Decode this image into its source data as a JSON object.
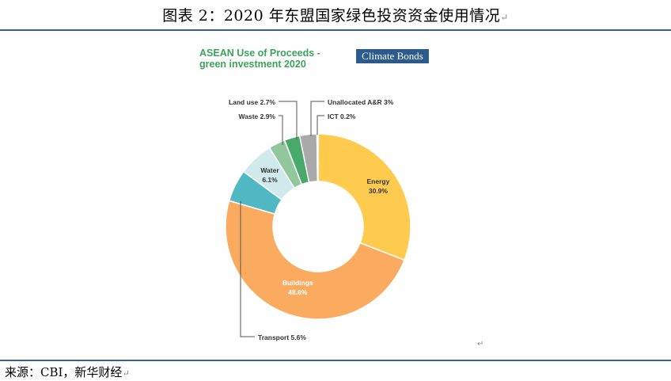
{
  "figure": {
    "title": "图表 2：2020 年东盟国家绿色投资资金使用情况",
    "para_mark": "↵",
    "source": "来源：CBI，新华财经"
  },
  "logo_text": "Climate Bonds",
  "chart_data": {
    "type": "pie",
    "title_line1": "ASEAN Use of Proceeds -",
    "title_line2": "green investment 2020",
    "slices": [
      {
        "name": "Energy",
        "value": 30.9,
        "value_label": "30.9%",
        "color": "#fecb4f",
        "label_mode": "inside"
      },
      {
        "name": "Buildings",
        "value": 48.6,
        "value_label": "48.6%",
        "color": "#fbab60",
        "label_mode": "inside"
      },
      {
        "name": "Transport",
        "value": 5.6,
        "value_label": "5.6%",
        "color": "#4fb8c2",
        "label_mode": "callout",
        "callout": "Transport 5.6%"
      },
      {
        "name": "Water",
        "value": 6.1,
        "value_label": "6.1%",
        "color": "#cfe9ec",
        "label_mode": "inside"
      },
      {
        "name": "Waste",
        "value": 2.9,
        "value_label": "2.9%",
        "color": "#92c79e",
        "label_mode": "callout",
        "callout": "Waste 2.9%"
      },
      {
        "name": "Land use",
        "value": 2.7,
        "value_label": "2.7%",
        "color": "#49a96a",
        "label_mode": "callout",
        "callout": "Land use 2.7%"
      },
      {
        "name": "Unallocated A&R",
        "value": 3,
        "value_label": "3%",
        "color": "#a9a9a9",
        "label_mode": "callout",
        "callout": "Unallocated A&R 3%"
      },
      {
        "name": "ICT",
        "value": 0.2,
        "value_label": "0.2%",
        "color": "#5b6e8a",
        "label_mode": "callout",
        "callout": "ICT 0.2%"
      }
    ]
  }
}
